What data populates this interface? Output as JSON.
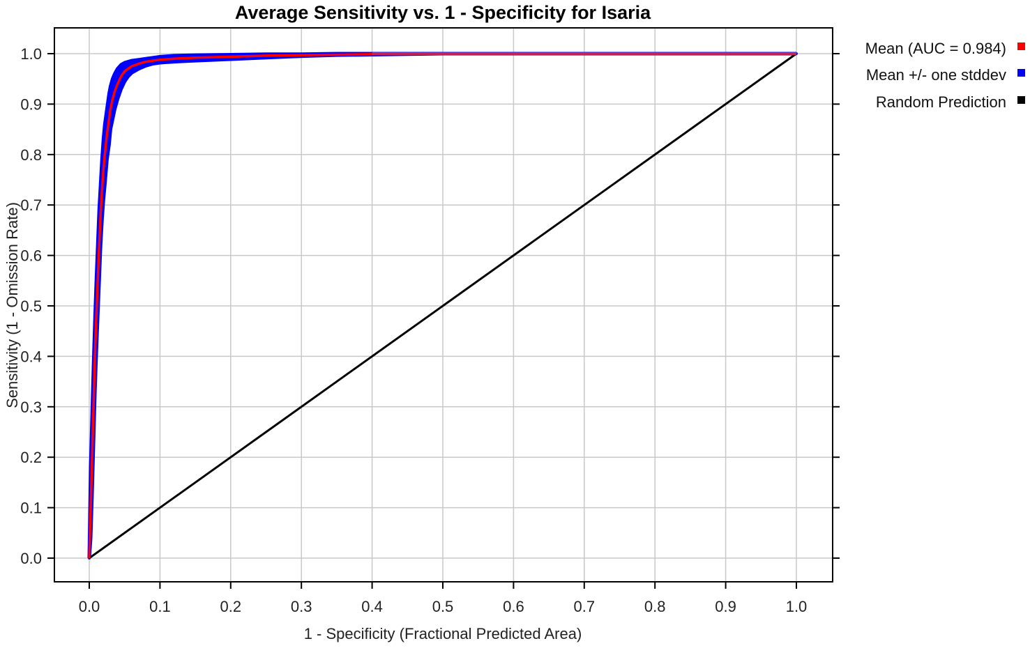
{
  "chart_data": {
    "type": "line",
    "title": "Average Sensitivity vs. 1 - Specificity for Isaria",
    "xlabel": "1 - Specificity (Fractional Predicted Area)",
    "ylabel": "Sensitivity (1 - Omission Rate)",
    "xlim": [
      0,
      1
    ],
    "ylim": [
      0,
      1
    ],
    "grid": true,
    "legend_position": "right",
    "x_ticks": [
      "0.0",
      "0.1",
      "0.2",
      "0.3",
      "0.4",
      "0.5",
      "0.6",
      "0.7",
      "0.8",
      "0.9",
      "1.0"
    ],
    "y_ticks": [
      "0.0",
      "0.1",
      "0.2",
      "0.3",
      "0.4",
      "0.5",
      "0.6",
      "0.7",
      "0.8",
      "0.9",
      "1.0"
    ],
    "x_tick_values": [
      0,
      0.1,
      0.2,
      0.3,
      0.4,
      0.5,
      0.6,
      0.7,
      0.8,
      0.9,
      1.0
    ],
    "y_tick_values": [
      0,
      0.1,
      0.2,
      0.3,
      0.4,
      0.5,
      0.6,
      0.7,
      0.8,
      0.9,
      1.0
    ],
    "series": [
      {
        "name": "Mean (AUC = 0.984)",
        "color": "#ff0000",
        "x": [
          0,
          0.002,
          0.004,
          0.006,
          0.008,
          0.01,
          0.012,
          0.014,
          0.016,
          0.018,
          0.02,
          0.022,
          0.025,
          0.028,
          0.03,
          0.033,
          0.036,
          0.04,
          0.045,
          0.05,
          0.055,
          0.06,
          0.07,
          0.08,
          0.09,
          0.1,
          0.12,
          0.15,
          0.2,
          0.25,
          0.3,
          0.35,
          0.4,
          0.5,
          0.6,
          0.7,
          0.8,
          0.9,
          1.0
        ],
        "y": [
          0,
          0.1,
          0.2,
          0.3,
          0.4,
          0.48,
          0.55,
          0.62,
          0.68,
          0.73,
          0.77,
          0.8,
          0.84,
          0.87,
          0.89,
          0.91,
          0.925,
          0.94,
          0.955,
          0.965,
          0.97,
          0.975,
          0.98,
          0.984,
          0.986,
          0.988,
          0.99,
          0.992,
          0.994,
          0.996,
          0.997,
          0.998,
          0.999,
          1.0,
          1.0,
          1.0,
          1.0,
          1.0,
          1.0
        ]
      },
      {
        "name": "Mean +/- one stddev",
        "color": "#0000ff",
        "x": [
          0,
          0.002,
          0.004,
          0.006,
          0.008,
          0.01,
          0.012,
          0.014,
          0.016,
          0.018,
          0.02,
          0.022,
          0.025,
          0.028,
          0.03,
          0.033,
          0.036,
          0.04,
          0.045,
          0.05,
          0.055,
          0.06,
          0.07,
          0.08,
          0.09,
          0.1,
          0.12,
          0.15,
          0.2,
          0.25,
          0.3,
          0.35,
          0.4,
          0.5,
          0.6,
          0.7,
          0.8,
          0.9,
          1.0
        ],
        "upper": [
          0,
          0.18,
          0.28,
          0.38,
          0.47,
          0.55,
          0.62,
          0.69,
          0.74,
          0.79,
          0.83,
          0.86,
          0.89,
          0.92,
          0.935,
          0.95,
          0.96,
          0.97,
          0.978,
          0.982,
          0.984,
          0.986,
          0.988,
          0.99,
          0.992,
          0.994,
          0.996,
          0.997,
          0.998,
          0.999,
          0.999,
          1.0,
          1.0,
          1.0,
          1.0,
          1.0,
          1.0,
          1.0,
          1.0
        ],
        "lower": [
          0,
          0.04,
          0.13,
          0.23,
          0.33,
          0.41,
          0.48,
          0.55,
          0.62,
          0.67,
          0.71,
          0.74,
          0.79,
          0.82,
          0.85,
          0.87,
          0.89,
          0.91,
          0.93,
          0.945,
          0.955,
          0.962,
          0.97,
          0.976,
          0.98,
          0.982,
          0.984,
          0.986,
          0.989,
          0.992,
          0.995,
          0.997,
          0.998,
          1.0,
          1.0,
          1.0,
          1.0,
          1.0,
          1.0
        ]
      },
      {
        "name": "Random Prediction",
        "color": "#000000",
        "x": [
          0,
          1
        ],
        "y": [
          0,
          1
        ]
      }
    ]
  },
  "colors": {
    "mean": "#ff0000",
    "stddev": "#0000ff",
    "random": "#000000",
    "grid": "#c8c8c8",
    "plot_border": "#000000",
    "background": "#ffffff"
  }
}
